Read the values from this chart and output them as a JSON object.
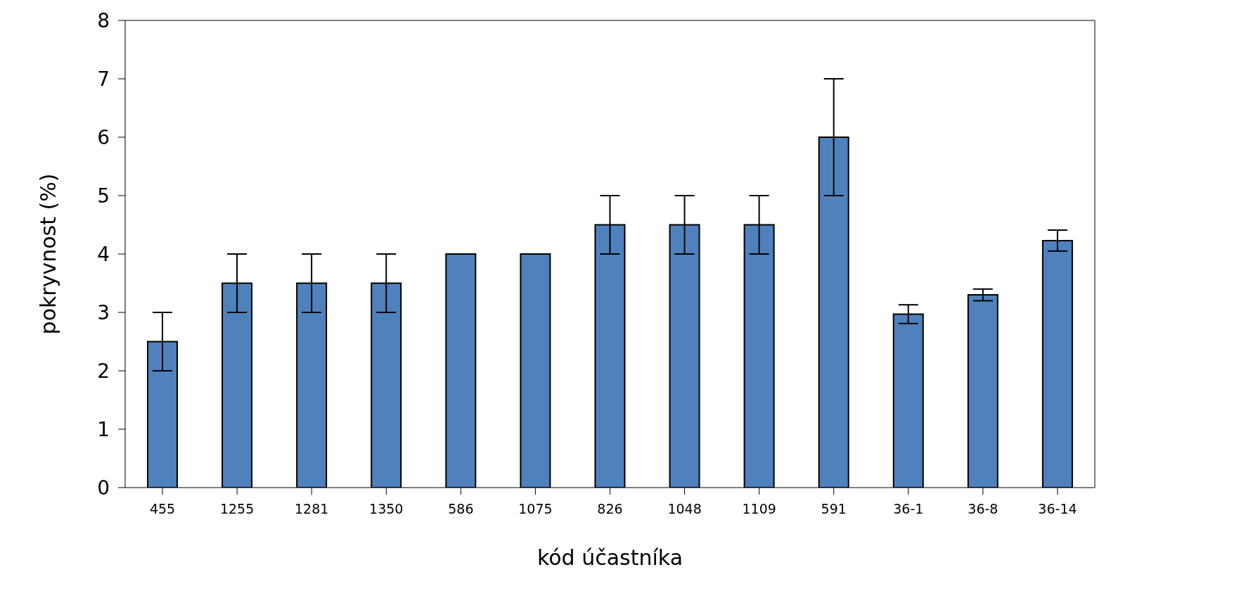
{
  "chart_data": {
    "type": "bar",
    "xlabel": "kód účastníka",
    "ylabel": "pokryvnost (%)",
    "categories": [
      "455",
      "1255",
      "1281",
      "1350",
      "586",
      "1075",
      "826",
      "1048",
      "1109",
      "591",
      "36-1",
      "36-8",
      "36-14"
    ],
    "values": [
      2.5,
      3.5,
      3.5,
      3.5,
      4,
      4,
      4.5,
      4.5,
      4.5,
      6,
      2.97,
      3.3,
      4.23
    ],
    "errors": [
      0.5,
      0.5,
      0.5,
      0.5,
      null,
      null,
      0.5,
      0.5,
      0.5,
      1,
      0.16,
      0.1,
      0.18
    ],
    "color": "#4f81bd",
    "ylim": [
      0,
      8
    ],
    "yticks": [
      0,
      1,
      2,
      3,
      4,
      5,
      6,
      7,
      8
    ],
    "grid": false,
    "legend": false
  }
}
